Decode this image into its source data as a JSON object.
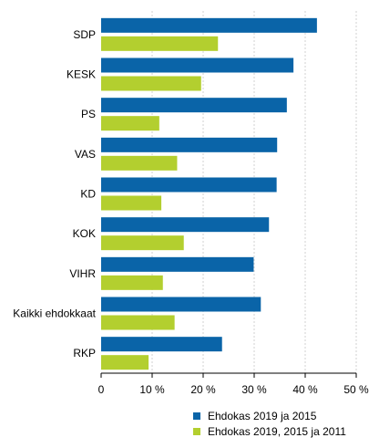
{
  "chart_data": {
    "type": "bar",
    "orientation": "horizontal",
    "categories": [
      "SDP",
      "KESK",
      "PS",
      "VAS",
      "KD",
      "KOK",
      "VIHR",
      "Kaikki ehdokkaat",
      "RKP"
    ],
    "series": [
      {
        "name": "Ehdokas 2019 ja 2015",
        "color": "#0a64a8",
        "values": [
          42.3,
          37.7,
          36.4,
          34.5,
          34.4,
          32.9,
          29.9,
          31.3,
          23.7
        ]
      },
      {
        "name": "Ehdokas 2019, 2015 ja 2011",
        "color": "#b3cf2f",
        "values": [
          22.9,
          19.6,
          11.4,
          14.9,
          11.8,
          16.2,
          12.1,
          14.4,
          9.3
        ]
      }
    ],
    "xlim": [
      0,
      50
    ],
    "xticks": [
      0,
      10,
      20,
      30,
      40,
      50
    ],
    "xtick_labels": [
      "0",
      "10 %",
      "20 %",
      "30 %",
      "40 %",
      "50 %"
    ],
    "grid": "vertical",
    "legend_position": "bottom-right"
  }
}
